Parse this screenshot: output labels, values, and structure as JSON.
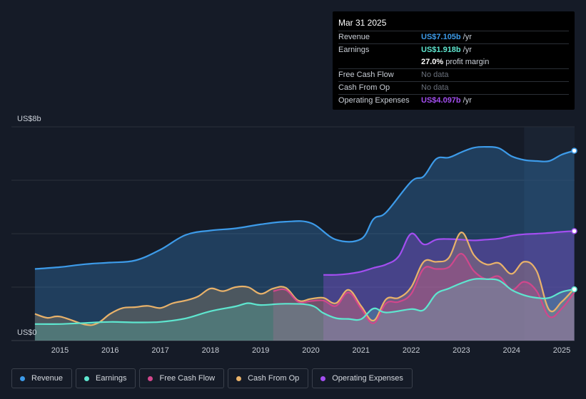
{
  "tooltip": {
    "date": "Mar 31 2025",
    "rows": [
      {
        "label": "Revenue",
        "value": "US$7.105b",
        "unit": "/yr",
        "color": "#3d9be9"
      },
      {
        "label": "Earnings",
        "value": "US$1.918b",
        "unit": "/yr",
        "color": "#5ee6cf"
      },
      {
        "label": "",
        "value": "27.0%",
        "unit": "profit margin",
        "color": "#ffffff"
      },
      {
        "label": "Free Cash Flow",
        "value": "No data"
      },
      {
        "label": "Cash From Op",
        "value": "No data"
      },
      {
        "label": "Operating Expenses",
        "value": "US$4.097b",
        "unit": "/yr",
        "color": "#a34ef0"
      }
    ]
  },
  "chart_data": {
    "type": "area",
    "y_unit": "US$ billions",
    "ylim": [
      0,
      8
    ],
    "y_tick_labels": {
      "top": "US$8b",
      "bottom": "US$0"
    },
    "x_tick_labels": [
      "2015",
      "2016",
      "2017",
      "2018",
      "2019",
      "2020",
      "2021",
      "2022",
      "2023",
      "2024",
      "2025"
    ],
    "xlim": [
      2014.46,
      2025.25
    ],
    "forecast_shade_start": 2024.25,
    "series": [
      {
        "name": "Revenue",
        "color": "#3d9be9",
        "points": [
          [
            2014.5,
            2.68
          ],
          [
            2015.0,
            2.75
          ],
          [
            2015.5,
            2.86
          ],
          [
            2016.0,
            2.92
          ],
          [
            2016.5,
            3.0
          ],
          [
            2017.0,
            3.4
          ],
          [
            2017.5,
            3.95
          ],
          [
            2018.0,
            4.12
          ],
          [
            2018.5,
            4.2
          ],
          [
            2019.0,
            4.35
          ],
          [
            2019.5,
            4.45
          ],
          [
            2020.0,
            4.4
          ],
          [
            2020.5,
            3.78
          ],
          [
            2021.0,
            3.8
          ],
          [
            2021.25,
            4.55
          ],
          [
            2021.5,
            4.8
          ],
          [
            2022.0,
            5.95
          ],
          [
            2022.25,
            6.15
          ],
          [
            2022.5,
            6.8
          ],
          [
            2022.75,
            6.85
          ],
          [
            2023.0,
            7.05
          ],
          [
            2023.25,
            7.22
          ],
          [
            2023.5,
            7.25
          ],
          [
            2023.75,
            7.2
          ],
          [
            2024.0,
            6.9
          ],
          [
            2024.25,
            6.76
          ],
          [
            2024.5,
            6.72
          ],
          [
            2024.75,
            6.72
          ],
          [
            2025.0,
            6.96
          ],
          [
            2025.25,
            7.105
          ]
        ]
      },
      {
        "name": "Earnings",
        "color": "#5ee6cf",
        "points": [
          [
            2014.5,
            0.62
          ],
          [
            2015.0,
            0.62
          ],
          [
            2015.5,
            0.66
          ],
          [
            2016.0,
            0.7
          ],
          [
            2016.5,
            0.68
          ],
          [
            2017.0,
            0.7
          ],
          [
            2017.5,
            0.83
          ],
          [
            2018.0,
            1.1
          ],
          [
            2018.5,
            1.28
          ],
          [
            2018.75,
            1.4
          ],
          [
            2019.0,
            1.33
          ],
          [
            2019.5,
            1.38
          ],
          [
            2020.0,
            1.32
          ],
          [
            2020.25,
            1.03
          ],
          [
            2020.5,
            0.84
          ],
          [
            2020.75,
            0.81
          ],
          [
            2021.0,
            0.8
          ],
          [
            2021.25,
            1.2
          ],
          [
            2021.5,
            1.05
          ],
          [
            2022.0,
            1.18
          ],
          [
            2022.25,
            1.15
          ],
          [
            2022.5,
            1.75
          ],
          [
            2022.75,
            1.95
          ],
          [
            2023.0,
            2.15
          ],
          [
            2023.25,
            2.3
          ],
          [
            2023.5,
            2.3
          ],
          [
            2023.75,
            2.25
          ],
          [
            2024.0,
            1.9
          ],
          [
            2024.25,
            1.7
          ],
          [
            2024.5,
            1.6
          ],
          [
            2024.75,
            1.6
          ],
          [
            2025.0,
            1.82
          ],
          [
            2025.25,
            1.918
          ]
        ]
      },
      {
        "name": "Free Cash Flow",
        "color": "#d1478c",
        "points": [
          [
            2019.25,
            1.85
          ],
          [
            2019.5,
            1.9
          ],
          [
            2019.75,
            1.45
          ],
          [
            2020.0,
            1.48
          ],
          [
            2020.25,
            1.5
          ],
          [
            2020.5,
            1.3
          ],
          [
            2020.75,
            1.8
          ],
          [
            2021.0,
            1.2
          ],
          [
            2021.25,
            0.65
          ],
          [
            2021.5,
            1.4
          ],
          [
            2021.75,
            1.45
          ],
          [
            2022.0,
            1.75
          ],
          [
            2022.25,
            2.7
          ],
          [
            2022.5,
            2.68
          ],
          [
            2022.75,
            2.75
          ],
          [
            2023.0,
            3.25
          ],
          [
            2023.25,
            2.6
          ],
          [
            2023.5,
            2.3
          ],
          [
            2023.75,
            2.4
          ],
          [
            2024.0,
            1.9
          ],
          [
            2024.25,
            2.2
          ],
          [
            2024.5,
            1.85
          ],
          [
            2024.75,
            0.9
          ],
          [
            2025.0,
            1.2
          ],
          [
            2025.25,
            1.8
          ]
        ]
      },
      {
        "name": "Cash From Op",
        "color": "#e9b26a",
        "points": [
          [
            2014.5,
            1.0
          ],
          [
            2014.75,
            0.85
          ],
          [
            2015.0,
            0.9
          ],
          [
            2015.5,
            0.6
          ],
          [
            2015.75,
            0.65
          ],
          [
            2016.0,
            1.0
          ],
          [
            2016.25,
            1.22
          ],
          [
            2016.5,
            1.25
          ],
          [
            2016.75,
            1.3
          ],
          [
            2017.0,
            1.22
          ],
          [
            2017.25,
            1.4
          ],
          [
            2017.5,
            1.5
          ],
          [
            2017.75,
            1.65
          ],
          [
            2018.0,
            1.95
          ],
          [
            2018.25,
            1.85
          ],
          [
            2018.5,
            2.0
          ],
          [
            2018.75,
            2.0
          ],
          [
            2019.0,
            1.75
          ],
          [
            2019.25,
            1.95
          ],
          [
            2019.5,
            1.98
          ],
          [
            2019.75,
            1.5
          ],
          [
            2020.0,
            1.56
          ],
          [
            2020.25,
            1.6
          ],
          [
            2020.5,
            1.4
          ],
          [
            2020.75,
            1.9
          ],
          [
            2021.0,
            1.3
          ],
          [
            2021.25,
            0.75
          ],
          [
            2021.5,
            1.55
          ],
          [
            2021.75,
            1.6
          ],
          [
            2022.0,
            2.0
          ],
          [
            2022.25,
            2.95
          ],
          [
            2022.5,
            2.95
          ],
          [
            2022.75,
            3.1
          ],
          [
            2023.0,
            4.05
          ],
          [
            2023.25,
            3.2
          ],
          [
            2023.5,
            2.85
          ],
          [
            2023.75,
            2.9
          ],
          [
            2024.0,
            2.5
          ],
          [
            2024.25,
            2.95
          ],
          [
            2024.5,
            2.6
          ],
          [
            2024.75,
            1.15
          ],
          [
            2025.0,
            1.45
          ],
          [
            2025.25,
            1.95
          ]
        ]
      },
      {
        "name": "Operating Expenses",
        "color": "#a34ef0",
        "points": [
          [
            2020.25,
            2.46
          ],
          [
            2020.5,
            2.46
          ],
          [
            2020.75,
            2.5
          ],
          [
            2021.0,
            2.58
          ],
          [
            2021.25,
            2.72
          ],
          [
            2021.5,
            2.85
          ],
          [
            2021.75,
            3.15
          ],
          [
            2022.0,
            4.0
          ],
          [
            2022.25,
            3.6
          ],
          [
            2022.5,
            3.78
          ],
          [
            2022.75,
            3.8
          ],
          [
            2023.0,
            3.78
          ],
          [
            2023.25,
            3.75
          ],
          [
            2023.5,
            3.78
          ],
          [
            2023.75,
            3.82
          ],
          [
            2024.0,
            3.92
          ],
          [
            2024.25,
            3.98
          ],
          [
            2024.5,
            4.0
          ],
          [
            2024.75,
            4.03
          ],
          [
            2025.0,
            4.07
          ],
          [
            2025.25,
            4.097
          ]
        ]
      }
    ]
  },
  "legend": [
    {
      "label": "Revenue",
      "color": "#3d9be9"
    },
    {
      "label": "Earnings",
      "color": "#5ee6cf"
    },
    {
      "label": "Free Cash Flow",
      "color": "#d1478c"
    },
    {
      "label": "Cash From Op",
      "color": "#e9b26a"
    },
    {
      "label": "Operating Expenses",
      "color": "#a34ef0"
    }
  ]
}
